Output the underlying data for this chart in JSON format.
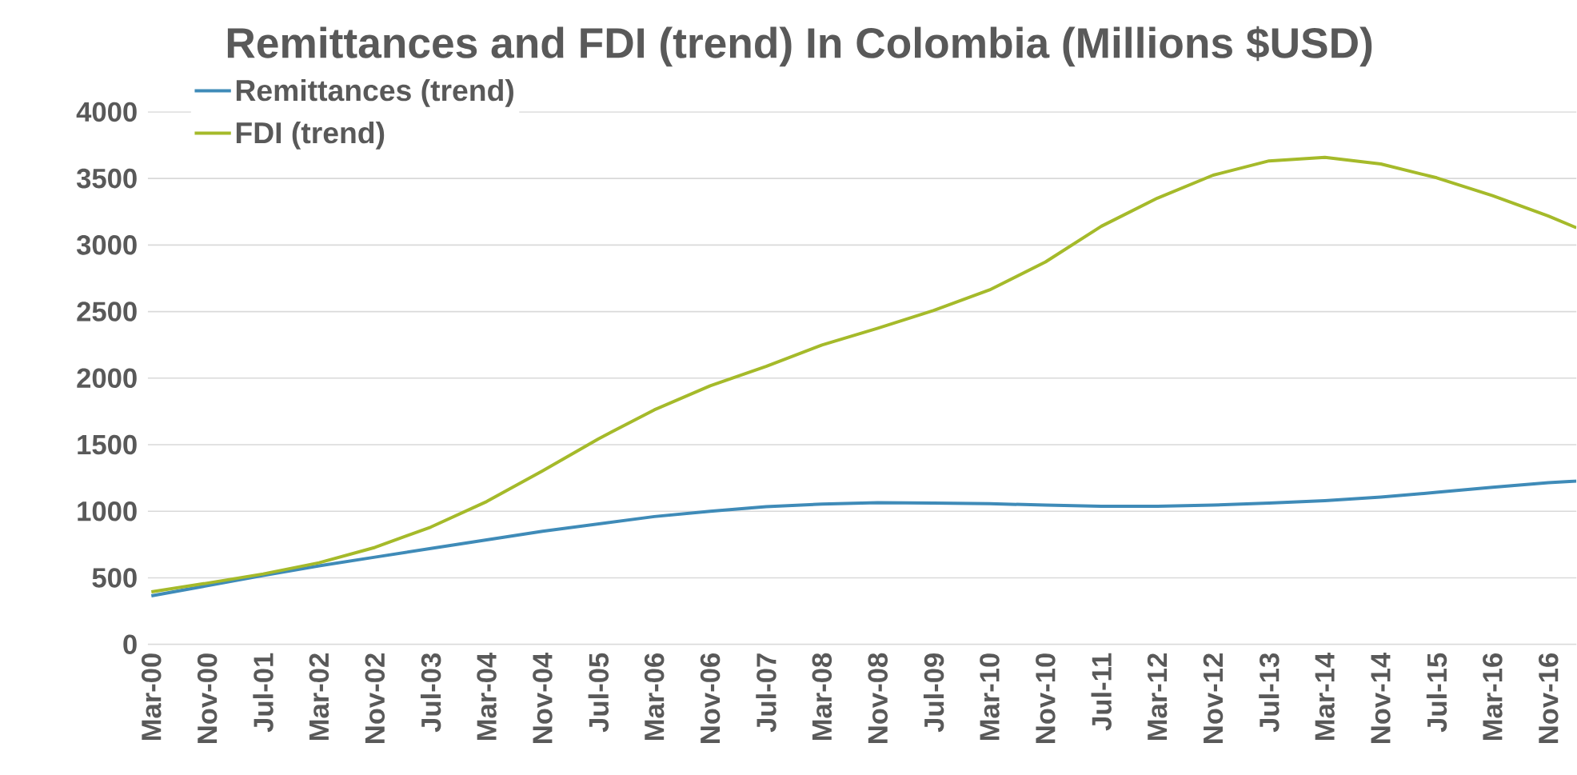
{
  "chart_data": {
    "type": "line",
    "title": "Remittances and FDI (trend) In Colombia (Millions $USD)",
    "x": [
      "2000-03",
      "2000-11",
      "2001-07",
      "2002-03",
      "2002-11",
      "2003-07",
      "2004-03",
      "2004-11",
      "2005-07",
      "2006-03",
      "2006-11",
      "2007-07",
      "2008-03",
      "2008-11",
      "2009-07",
      "2010-03",
      "2010-11",
      "2011-07",
      "2012-03",
      "2012-11",
      "2013-07",
      "2014-03",
      "2014-11",
      "2015-07",
      "2016-03",
      "2016-11",
      "2017-03"
    ],
    "series": [
      {
        "name": "Remittances (trend)",
        "color": "#3f8bb8",
        "values": [
          364,
          441,
          517,
          590,
          655,
          720,
          785,
          850,
          905,
          960,
          1000,
          1035,
          1054,
          1065,
          1061,
          1057,
          1046,
          1038,
          1038,
          1046,
          1061,
          1080,
          1107,
          1142,
          1180,
          1214,
          1226
        ]
      },
      {
        "name": "FDI (trend)",
        "color": "#a5ba2a",
        "values": [
          395,
          460,
          529,
          613,
          728,
          881,
          1073,
          1303,
          1544,
          1762,
          1942,
          2088,
          2249,
          2375,
          2509,
          2663,
          2873,
          3141,
          3352,
          3525,
          3632,
          3659,
          3609,
          3505,
          3371,
          3218,
          3130
        ]
      }
    ],
    "xlim": [
      "2000-03",
      "2017-03"
    ],
    "xticks": [
      {
        "value": "2000-03",
        "label": "Mar-00"
      },
      {
        "value": "2000-11",
        "label": "Nov-00"
      },
      {
        "value": "2001-07",
        "label": "Jul-01"
      },
      {
        "value": "2002-03",
        "label": "Mar-02"
      },
      {
        "value": "2002-11",
        "label": "Nov-02"
      },
      {
        "value": "2003-07",
        "label": "Jul-03"
      },
      {
        "value": "2004-03",
        "label": "Mar-04"
      },
      {
        "value": "2004-11",
        "label": "Nov-04"
      },
      {
        "value": "2005-07",
        "label": "Jul-05"
      },
      {
        "value": "2006-03",
        "label": "Mar-06"
      },
      {
        "value": "2006-11",
        "label": "Nov-06"
      },
      {
        "value": "2007-07",
        "label": "Jul-07"
      },
      {
        "value": "2008-03",
        "label": "Mar-08"
      },
      {
        "value": "2008-11",
        "label": "Nov-08"
      },
      {
        "value": "2009-07",
        "label": "Jul-09"
      },
      {
        "value": "2010-03",
        "label": "Mar-10"
      },
      {
        "value": "2010-11",
        "label": "Nov-10"
      },
      {
        "value": "2011-07",
        "label": "Jul-11"
      },
      {
        "value": "2012-03",
        "label": "Mar-12"
      },
      {
        "value": "2012-11",
        "label": "Nov-12"
      },
      {
        "value": "2013-07",
        "label": "Jul-13"
      },
      {
        "value": "2014-03",
        "label": "Mar-14"
      },
      {
        "value": "2014-11",
        "label": "Nov-14"
      },
      {
        "value": "2015-07",
        "label": "Jul-15"
      },
      {
        "value": "2016-03",
        "label": "Mar-16"
      },
      {
        "value": "2016-11",
        "label": "Nov-16"
      }
    ],
    "ylim": [
      0,
      4000
    ],
    "yticks": [
      0,
      500,
      1000,
      1500,
      2000,
      2500,
      3000,
      3500,
      4000
    ],
    "grid": "y",
    "legend": "top left",
    "marker": "none",
    "line_style": "solid"
  }
}
